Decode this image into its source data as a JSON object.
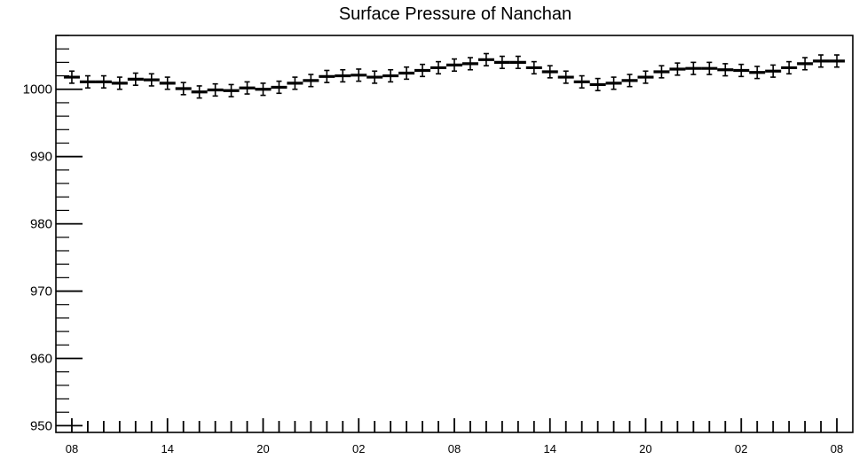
{
  "chart_data": {
    "type": "scatter",
    "title": "Surface Pressure of Nanchan",
    "xlabel": "",
    "ylabel": "",
    "ylim": [
      949,
      1008
    ],
    "y_ticks": [
      950,
      960,
      970,
      980,
      990,
      1000
    ],
    "x_tick_labels": [
      "08",
      "14",
      "20",
      "02",
      "08",
      "14",
      "20",
      "02",
      "08"
    ],
    "x_tick_hours": [
      0,
      6,
      12,
      18,
      24,
      30,
      36,
      42,
      48
    ],
    "x_hours_range": [
      -1,
      49
    ],
    "error_bar": 0.9,
    "series": [
      {
        "x": [
          0,
          1,
          2,
          3,
          4,
          5,
          6,
          7,
          8,
          9,
          10,
          11,
          12,
          13,
          14,
          15,
          16,
          17,
          18,
          19,
          20,
          21,
          22,
          23,
          24,
          25,
          26,
          27,
          28,
          29,
          30,
          31,
          32,
          33,
          34,
          35,
          36,
          37,
          38,
          39,
          40,
          41,
          42,
          43,
          44,
          45,
          46,
          47,
          48
        ],
        "y": [
          1001.8,
          1001.1,
          1001.1,
          1000.9,
          1001.5,
          1001.4,
          1000.9,
          1000.1,
          999.6,
          999.9,
          999.8,
          1000.2,
          1000.0,
          1000.3,
          1000.9,
          1001.3,
          1001.9,
          1002.0,
          1002.1,
          1001.8,
          1002.0,
          1002.4,
          1002.8,
          1003.2,
          1003.6,
          1003.8,
          1004.4,
          1004.0,
          1004.0,
          1003.2,
          1002.6,
          1001.8,
          1001.1,
          1000.7,
          1000.9,
          1001.3,
          1001.8,
          1002.6,
          1003.0,
          1003.1,
          1003.1,
          1002.9,
          1002.8,
          1002.5,
          1002.7,
          1003.2,
          1003.8,
          1004.2,
          1004.2
        ]
      }
    ]
  }
}
